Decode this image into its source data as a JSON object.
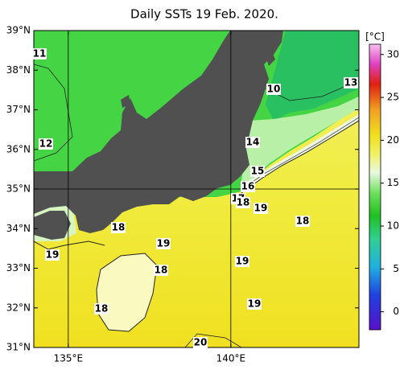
{
  "title": "Daily SSTs 19 Feb. 2020.",
  "map": {
    "lat_range": [
      31,
      39
    ],
    "lon_range": [
      133.94,
      143.94
    ],
    "lat_labels": [
      {
        "value": 39,
        "label": "39°N"
      },
      {
        "value": 38,
        "label": "38°N"
      },
      {
        "value": 37,
        "label": "37°N"
      },
      {
        "value": 36,
        "label": "36°N"
      },
      {
        "value": 35,
        "label": "35°N"
      },
      {
        "value": 34,
        "label": "34°N"
      },
      {
        "value": 33,
        "label": "33°N"
      },
      {
        "value": 32,
        "label": "32°N"
      },
      {
        "value": 31,
        "label": "31°N"
      }
    ],
    "lon_labels": [
      {
        "value": 135,
        "label": "135°E"
      },
      {
        "value": 140,
        "label": "140°E"
      }
    ],
    "contour_labels": [
      "11",
      "10",
      "13",
      "12",
      "14",
      "15",
      "16",
      "17",
      "18",
      "19",
      "18",
      "18",
      "19",
      "19",
      "18",
      "19",
      "18",
      "19",
      "20"
    ]
  },
  "colorbar": {
    "unit": "[°C]",
    "range": [
      -2.1,
      31.2
    ],
    "ticks": [
      0,
      5,
      10,
      15,
      20,
      25,
      30
    ]
  }
}
